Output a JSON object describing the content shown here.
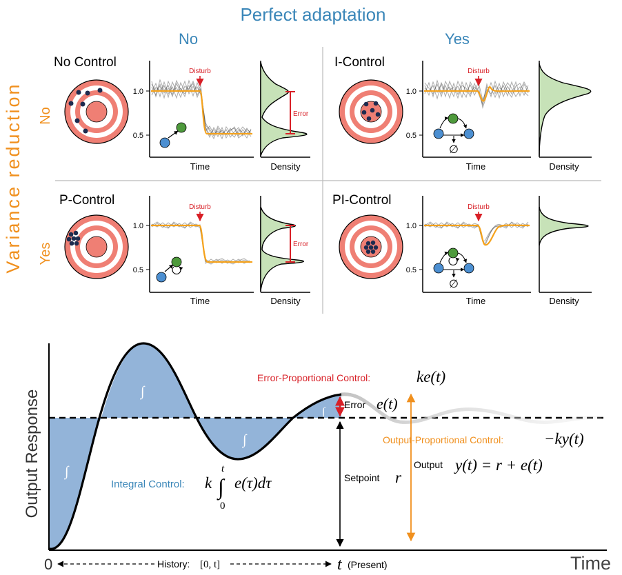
{
  "colors": {
    "blue_header": "#3a86b8",
    "orange_header": "#f0901e",
    "red": "#d81f26",
    "salmon": "#ef7f74",
    "orange_line": "#f5a21b",
    "green_fill": "#c7e2b8",
    "area_blue": "#93b4d9",
    "node_blue": "#4c8fd1",
    "node_green": "#4e9a3c",
    "dot_navy": "#1d2b4f"
  },
  "header": {
    "title": "Perfect adaptation",
    "col_no": "No",
    "col_yes": "Yes",
    "row_title": "Variance reduction",
    "row_no": "No",
    "row_yes": "Yes"
  },
  "panels": {
    "no_control": {
      "title": "No Control",
      "disturb": "Disturb",
      "error": "Error",
      "xlabel": "Time",
      "density": "Density",
      "y_hi": "1.0",
      "y_lo": "0.5"
    },
    "i_control": {
      "title": "I-Control",
      "disturb": "Disturb",
      "xlabel": "Time",
      "density": "Density",
      "y_hi": "1.0",
      "y_lo": "0.5",
      "degrade": "∅"
    },
    "p_control": {
      "title": "P-Control",
      "disturb": "Disturb",
      "error": "Error",
      "xlabel": "Time",
      "density": "Density",
      "y_hi": "1.0",
      "y_lo": "0.5"
    },
    "pi_control": {
      "title": "PI-Control",
      "disturb": "Disturb",
      "xlabel": "Time",
      "density": "Density",
      "y_hi": "1.0",
      "y_lo": "0.5",
      "degrade": "∅"
    }
  },
  "response": {
    "ylabel": "Output Response",
    "xlabel": "Time",
    "integral_symbol": "∫",
    "error_prop_label": "Error-Proportional Control:",
    "error_prop_formula": "ke(t)",
    "error_label": "Error",
    "error_formula": "e(t)",
    "output_prop_label": "Output-Proportional Control:",
    "output_prop_formula": "−ky(t)",
    "output_label": "Output",
    "output_formula": "y(t) = r + e(t)",
    "integral_label": "Integral Control:",
    "integral_k": "k",
    "integral_upper": "t",
    "integral_lower": "0",
    "integral_sign": "∫",
    "integral_body": "e(τ)dτ",
    "setpoint_label": "Setpoint",
    "setpoint_symbol": "r",
    "origin": "0",
    "history_label": "History:",
    "history_interval": "[0, t]",
    "t_symbol": "t",
    "present_label": "(Present)"
  }
}
